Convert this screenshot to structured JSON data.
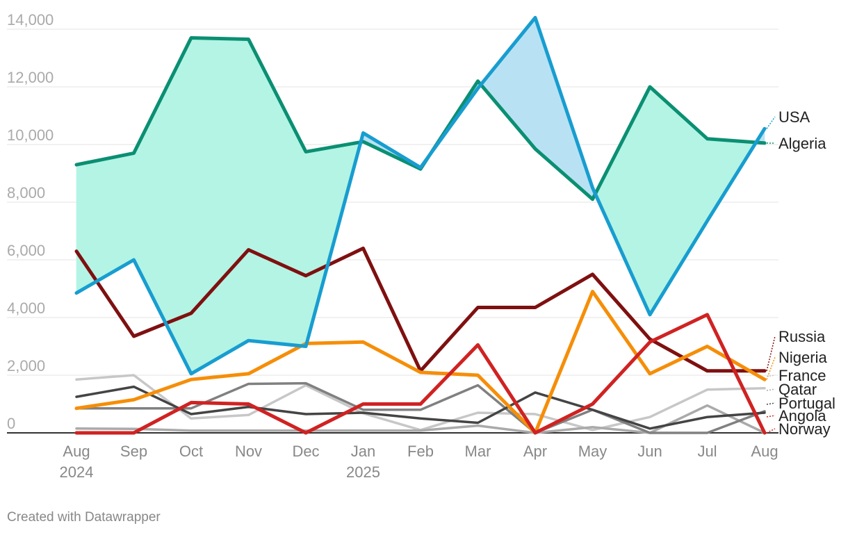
{
  "chart_data": {
    "type": "line",
    "x": [
      "Aug",
      "Sep",
      "Oct",
      "Nov",
      "Dec",
      "Jan",
      "Feb",
      "Mar",
      "Apr",
      "May",
      "Jun",
      "Jul",
      "Aug"
    ],
    "x_year_labels": [
      "2024",
      "",
      "",
      "",
      "",
      "2025",
      "",
      "",
      "",
      "",
      "",
      "",
      ""
    ],
    "ylim": [
      0,
      14000
    ],
    "y_ticks": [
      0,
      2000,
      4000,
      6000,
      8000,
      10000,
      12000,
      14000
    ],
    "y_tick_labels": [
      "0",
      "2,000",
      "4,000",
      "6,000",
      "8,000",
      "10,000",
      "12,000",
      "14,000"
    ],
    "grid": true,
    "area_between": [
      "USA",
      "Algeria"
    ],
    "area_colors": {
      "Algeria": "#b3f4e4",
      "USA": "#b8e2f3"
    },
    "series": [
      {
        "name": "",
        "color": "#c7c7c7",
        "values": [
          1850,
          2000,
          500,
          620,
          1650,
          680,
          100,
          700,
          650,
          100,
          550,
          1500,
          1550
        ]
      },
      {
        "name": "",
        "color": "#aaaaaa",
        "values": [
          150,
          140,
          80,
          80,
          80,
          80,
          80,
          250,
          0,
          200,
          0,
          950,
          0
        ]
      },
      {
        "name": "",
        "color": "#808080",
        "values": [
          850,
          850,
          850,
          1700,
          1720,
          800,
          800,
          1650,
          0,
          800,
          0,
          0,
          750
        ]
      },
      {
        "name": "",
        "color": "#444444",
        "values": [
          1250,
          1600,
          650,
          900,
          650,
          700,
          500,
          350,
          1400,
          800,
          150,
          550,
          700
        ]
      },
      {
        "name": "Russia",
        "color": "#7f1010",
        "values": [
          6300,
          3350,
          4150,
          6350,
          5450,
          6400,
          2150,
          4350,
          4350,
          5500,
          3250,
          2150,
          2150
        ]
      },
      {
        "name": "Nigeria",
        "color": "#f58e08",
        "values": [
          850,
          1150,
          1850,
          2050,
          3100,
          3150,
          2100,
          2000,
          0,
          4900,
          2050,
          3000,
          1850
        ]
      },
      {
        "name": "Norway",
        "color": "#d02222",
        "values": [
          0,
          0,
          1050,
          1000,
          0,
          1000,
          1000,
          3050,
          0,
          1000,
          3150,
          4100,
          0
        ]
      },
      {
        "name": "Algeria",
        "color": "#0b8f72",
        "values": [
          9300,
          9700,
          13700,
          13650,
          9750,
          10100,
          9150,
          12200,
          9850,
          8100,
          12000,
          10200,
          10050
        ]
      },
      {
        "name": "USA",
        "color": "#189dd0",
        "values": [
          4850,
          6000,
          2050,
          3200,
          3000,
          10400,
          9200,
          11950,
          14400,
          8500,
          4100,
          7350,
          10550
        ]
      }
    ],
    "end_labels": [
      {
        "text": "USA",
        "color": "#189dd0"
      },
      {
        "text": "Algeria",
        "color": "#0b8f72"
      },
      {
        "text": "Russia",
        "color": "#7f1010"
      },
      {
        "text": "Nigeria",
        "color": "#f58e08"
      },
      {
        "text": "France",
        "color": "#c7c7c7"
      },
      {
        "text": "Qatar",
        "color": "#aaaaaa"
      },
      {
        "text": "Portugal",
        "color": "#444444"
      },
      {
        "text": "Angola",
        "color": "#d02222"
      },
      {
        "text": "Norway",
        "color": "#d02222"
      }
    ],
    "source_note": "Created with Datawrapper"
  }
}
